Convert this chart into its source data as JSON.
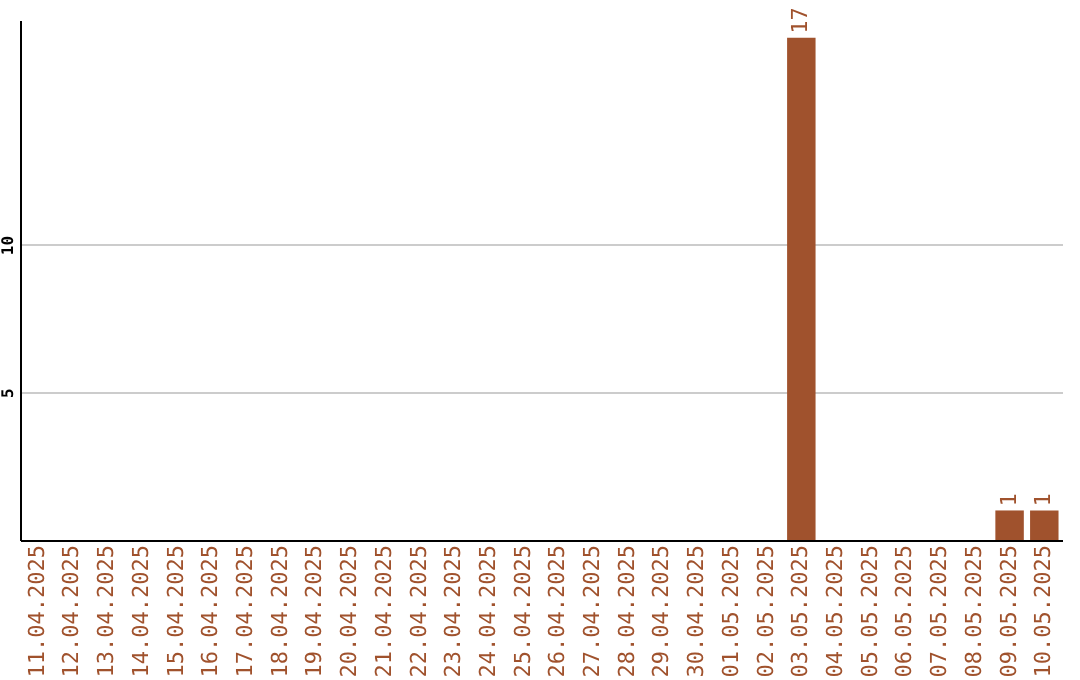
{
  "chart_data": {
    "type": "bar",
    "categories": [
      "11.04.2025",
      "12.04.2025",
      "13.04.2025",
      "14.04.2025",
      "15.04.2025",
      "16.04.2025",
      "17.04.2025",
      "18.04.2025",
      "19.04.2025",
      "20.04.2025",
      "21.04.2025",
      "22.04.2025",
      "23.04.2025",
      "24.04.2025",
      "25.04.2025",
      "26.04.2025",
      "27.04.2025",
      "28.04.2025",
      "29.04.2025",
      "30.04.2025",
      "01.05.2025",
      "02.05.2025",
      "03.05.2025",
      "04.05.2025",
      "05.05.2025",
      "06.05.2025",
      "07.05.2025",
      "08.05.2025",
      "09.05.2025",
      "10.05.2025"
    ],
    "values": [
      0,
      0,
      0,
      0,
      0,
      0,
      0,
      0,
      0,
      0,
      0,
      0,
      0,
      0,
      0,
      0,
      0,
      0,
      0,
      0,
      0,
      0,
      17,
      0,
      0,
      0,
      0,
      0,
      1,
      1
    ],
    "value_labels": [
      null,
      null,
      null,
      null,
      null,
      null,
      null,
      null,
      null,
      null,
      null,
      null,
      null,
      null,
      null,
      null,
      null,
      null,
      null,
      null,
      null,
      null,
      "17",
      null,
      null,
      null,
      null,
      null,
      "1",
      "1"
    ],
    "color": "#a0522d",
    "ylim": [
      0,
      17.6
    ],
    "yticks": [
      5,
      10
    ],
    "grid": "y"
  }
}
